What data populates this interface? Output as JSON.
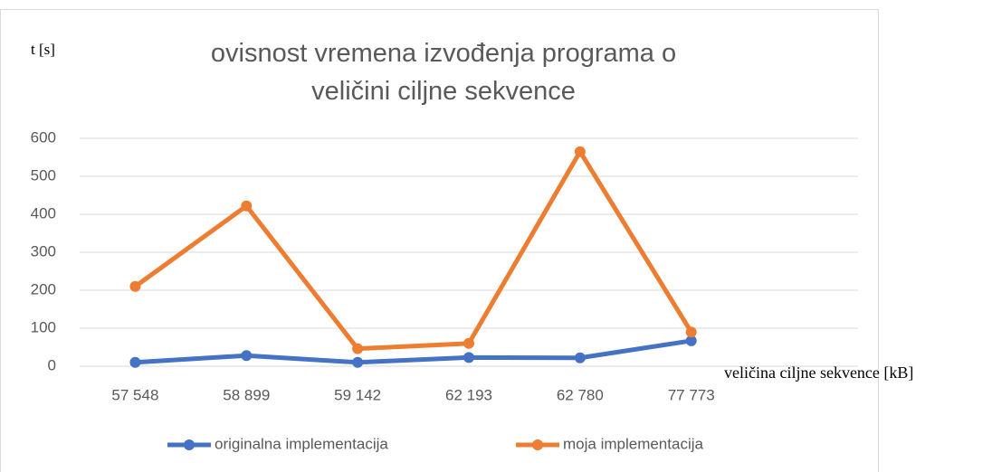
{
  "chart_data": {
    "type": "line",
    "title": "ovisnost vremena izvođenja programa o veličini ciljne sekvence",
    "y_label": "t [s]",
    "x_label": "veličina ciljne sekvence [kB]",
    "categories": [
      "57 548",
      "58 899",
      "59 142",
      "62 193",
      "62 780",
      "77 773",
      null
    ],
    "series": [
      {
        "name": "originalna implementacija",
        "color": "#4472c4",
        "values": [
          10,
          28,
          10,
          23,
          22,
          67,
          null
        ]
      },
      {
        "name": "moja implementacija",
        "color": "#ed7d31",
        "values": [
          210,
          422,
          46,
          60,
          565,
          90,
          null
        ]
      }
    ],
    "ylim": [
      0,
      600
    ],
    "yticks": [
      0,
      100,
      200,
      300,
      400,
      500,
      600
    ],
    "grid": true
  }
}
